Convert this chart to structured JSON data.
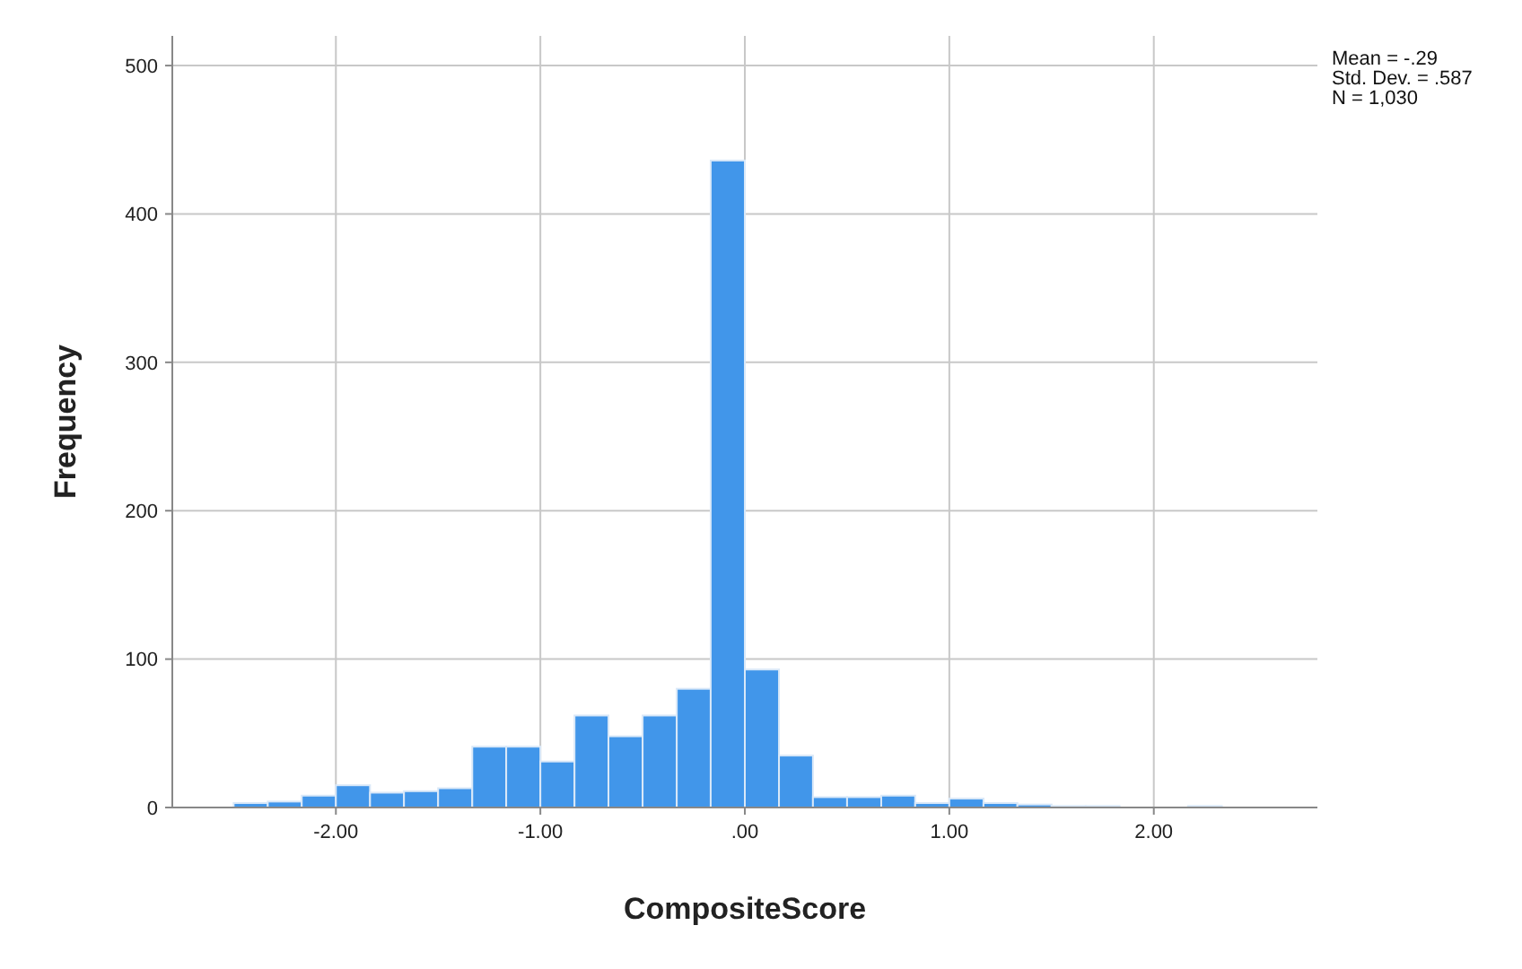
{
  "chart_data": {
    "type": "histogram",
    "xlabel": "CompositeScore",
    "ylabel": "Frequency",
    "bins": [
      -2.5,
      -2.333,
      -2.167,
      -2,
      -1.833,
      -1.667,
      -1.5,
      -1.333,
      -1.167,
      -1,
      -0.833,
      -0.667,
      -0.5,
      -0.333,
      -0.167,
      0,
      0.167,
      0.333,
      0.5,
      0.667,
      0.833,
      1,
      1.167,
      1.333,
      1.5,
      1.667,
      1.833,
      2,
      2.167,
      2.333,
      2.5
    ],
    "values": [
      3,
      4,
      8,
      15,
      10,
      11,
      13,
      41,
      41,
      31,
      62,
      48,
      62,
      80,
      436,
      93,
      35,
      7,
      7,
      8,
      3,
      6,
      3,
      2,
      1,
      1,
      0,
      0,
      1,
      0
    ],
    "color": "#4196ea",
    "xlim": [
      -2.8,
      2.8
    ],
    "ylim": [
      0,
      520
    ],
    "xticks": [
      {
        "value": -2,
        "label": "-2.00"
      },
      {
        "value": -1,
        "label": "-1.00"
      },
      {
        "value": 0,
        "label": ".00"
      },
      {
        "value": 1,
        "label": "1.00"
      },
      {
        "value": 2,
        "label": "2.00"
      }
    ],
    "yticks": [
      0,
      100,
      200,
      300,
      400,
      500
    ],
    "grid": true,
    "annotations": [
      "Mean = -.29",
      "Std. Dev. = .587",
      "N = 1,030"
    ]
  }
}
